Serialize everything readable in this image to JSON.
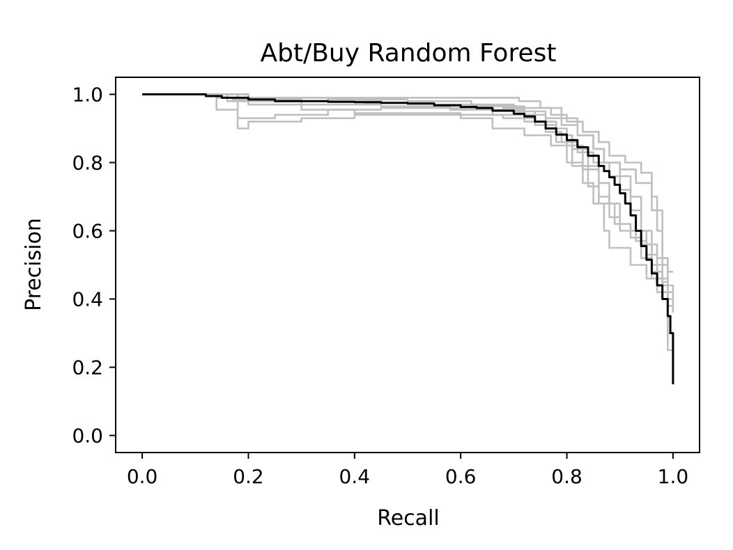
{
  "chart_data": {
    "type": "line",
    "title": "Abt/Buy Random Forest",
    "xlabel": "Recall",
    "ylabel": "Precision",
    "xlim": [
      -0.05,
      1.05
    ],
    "ylim": [
      -0.05,
      1.05
    ],
    "xticks": [
      0.0,
      0.2,
      0.4,
      0.6,
      0.8,
      1.0
    ],
    "yticks": [
      0.0,
      0.2,
      0.4,
      0.6,
      0.8,
      1.0
    ],
    "tick_labels_x": [
      "0.0",
      "0.2",
      "0.4",
      "0.6",
      "0.8",
      "1.0"
    ],
    "tick_labels_y": [
      "0.0",
      "0.2",
      "0.4",
      "0.6",
      "0.8",
      "1.0"
    ],
    "grid": false,
    "colors": {
      "fold": "#bfbfbf",
      "mean": "#000000"
    },
    "series": [
      {
        "role": "fold",
        "points": [
          [
            0,
            1.0
          ],
          [
            0.12,
            1.0
          ],
          [
            0.14,
            0.99
          ],
          [
            0.17,
            0.985
          ],
          [
            0.25,
            0.98
          ],
          [
            0.35,
            0.98
          ],
          [
            0.45,
            0.975
          ],
          [
            0.55,
            0.97
          ],
          [
            0.62,
            0.965
          ],
          [
            0.68,
            0.96
          ],
          [
            0.72,
            0.95
          ],
          [
            0.76,
            0.93
          ],
          [
            0.79,
            0.91
          ],
          [
            0.82,
            0.88
          ],
          [
            0.85,
            0.84
          ],
          [
            0.87,
            0.8
          ],
          [
            0.9,
            0.76
          ],
          [
            0.92,
            0.7
          ],
          [
            0.94,
            0.6
          ],
          [
            0.96,
            0.5
          ],
          [
            0.98,
            0.4
          ],
          [
            0.99,
            0.25
          ],
          [
            1.0,
            0.16
          ]
        ]
      },
      {
        "role": "fold",
        "points": [
          [
            0,
            1.0
          ],
          [
            0.13,
            1.0
          ],
          [
            0.14,
            0.955
          ],
          [
            0.18,
            0.955
          ],
          [
            0.18,
            0.93
          ],
          [
            0.25,
            0.94
          ],
          [
            0.35,
            0.955
          ],
          [
            0.45,
            0.96
          ],
          [
            0.55,
            0.96
          ],
          [
            0.65,
            0.955
          ],
          [
            0.72,
            0.94
          ],
          [
            0.76,
            0.9
          ],
          [
            0.8,
            0.85
          ],
          [
            0.83,
            0.78
          ],
          [
            0.86,
            0.7
          ],
          [
            0.88,
            0.64
          ],
          [
            0.9,
            0.6
          ],
          [
            0.93,
            0.57
          ],
          [
            0.95,
            0.53
          ],
          [
            0.97,
            0.46
          ],
          [
            0.99,
            0.42
          ],
          [
            1.0,
            0.38
          ]
        ]
      },
      {
        "role": "fold",
        "points": [
          [
            0,
            1.0
          ],
          [
            0.14,
            1.0
          ],
          [
            0.18,
            0.9
          ],
          [
            0.2,
            0.9
          ],
          [
            0.2,
            0.92
          ],
          [
            0.3,
            0.93
          ],
          [
            0.4,
            0.94
          ],
          [
            0.5,
            0.945
          ],
          [
            0.6,
            0.94
          ],
          [
            0.68,
            0.93
          ],
          [
            0.74,
            0.91
          ],
          [
            0.78,
            0.86
          ],
          [
            0.81,
            0.79
          ],
          [
            0.84,
            0.73
          ],
          [
            0.86,
            0.68
          ],
          [
            0.89,
            0.62
          ],
          [
            0.92,
            0.6
          ],
          [
            0.95,
            0.56
          ],
          [
            0.97,
            0.52
          ],
          [
            0.99,
            0.48
          ],
          [
            1.0,
            0.48
          ]
        ]
      },
      {
        "role": "fold",
        "points": [
          [
            0,
            1.0
          ],
          [
            0.13,
            1.0
          ],
          [
            0.2,
            0.99
          ],
          [
            0.3,
            0.99
          ],
          [
            0.45,
            0.99
          ],
          [
            0.6,
            0.99
          ],
          [
            0.7,
            0.99
          ],
          [
            0.71,
            0.98
          ],
          [
            0.75,
            0.96
          ],
          [
            0.79,
            0.93
          ],
          [
            0.82,
            0.88
          ],
          [
            0.85,
            0.84
          ],
          [
            0.87,
            0.8
          ],
          [
            0.9,
            0.78
          ],
          [
            0.93,
            0.74
          ],
          [
            0.96,
            0.66
          ],
          [
            0.98,
            0.5
          ],
          [
            0.99,
            0.3
          ],
          [
            1.0,
            0.15
          ]
        ]
      },
      {
        "role": "fold",
        "points": [
          [
            0,
            1.0
          ],
          [
            0.1,
            1.0
          ],
          [
            0.2,
            0.97
          ],
          [
            0.3,
            0.955
          ],
          [
            0.4,
            0.945
          ],
          [
            0.5,
            0.94
          ],
          [
            0.6,
            0.93
          ],
          [
            0.66,
            0.9
          ],
          [
            0.72,
            0.88
          ],
          [
            0.77,
            0.85
          ],
          [
            0.8,
            0.8
          ],
          [
            0.83,
            0.74
          ],
          [
            0.85,
            0.68
          ],
          [
            0.87,
            0.6
          ],
          [
            0.88,
            0.55
          ],
          [
            0.9,
            0.55
          ],
          [
            0.92,
            0.5
          ],
          [
            0.95,
            0.46
          ],
          [
            0.97,
            0.42
          ],
          [
            0.99,
            0.38
          ],
          [
            1.0,
            0.36
          ]
        ]
      },
      {
        "role": "fold",
        "points": [
          [
            0,
            1.0
          ],
          [
            0.12,
            1.0
          ],
          [
            0.16,
            0.98
          ],
          [
            0.3,
            0.98
          ],
          [
            0.42,
            0.975
          ],
          [
            0.55,
            0.97
          ],
          [
            0.65,
            0.965
          ],
          [
            0.72,
            0.96
          ],
          [
            0.77,
            0.94
          ],
          [
            0.8,
            0.92
          ],
          [
            0.83,
            0.89
          ],
          [
            0.86,
            0.86
          ],
          [
            0.88,
            0.82
          ],
          [
            0.91,
            0.8
          ],
          [
            0.94,
            0.77
          ],
          [
            0.96,
            0.7
          ],
          [
            0.97,
            0.6
          ],
          [
            0.98,
            0.45
          ],
          [
            0.99,
            0.3
          ],
          [
            1.0,
            0.15
          ]
        ]
      },
      {
        "role": "fold",
        "points": [
          [
            0,
            1.0
          ],
          [
            0.12,
            1.0
          ],
          [
            0.2,
            0.99
          ],
          [
            0.35,
            0.985
          ],
          [
            0.5,
            0.98
          ],
          [
            0.62,
            0.97
          ],
          [
            0.7,
            0.95
          ],
          [
            0.74,
            0.92
          ],
          [
            0.78,
            0.88
          ],
          [
            0.81,
            0.84
          ],
          [
            0.84,
            0.79
          ],
          [
            0.86,
            0.74
          ],
          [
            0.88,
            0.68
          ],
          [
            0.9,
            0.62
          ],
          [
            0.92,
            0.58
          ],
          [
            0.94,
            0.52
          ],
          [
            0.96,
            0.48
          ],
          [
            0.98,
            0.44
          ],
          [
            1.0,
            0.41
          ]
        ]
      },
      {
        "role": "fold",
        "points": [
          [
            0,
            1.0
          ],
          [
            0.12,
            1.0
          ],
          [
            0.18,
            0.985
          ],
          [
            0.3,
            0.97
          ],
          [
            0.45,
            0.965
          ],
          [
            0.58,
            0.955
          ],
          [
            0.66,
            0.94
          ],
          [
            0.72,
            0.92
          ],
          [
            0.76,
            0.89
          ],
          [
            0.79,
            0.86
          ],
          [
            0.82,
            0.83
          ],
          [
            0.85,
            0.8
          ],
          [
            0.88,
            0.76
          ],
          [
            0.9,
            0.72
          ],
          [
            0.92,
            0.66
          ],
          [
            0.94,
            0.56
          ],
          [
            0.96,
            0.46
          ],
          [
            0.98,
            0.4
          ],
          [
            1.0,
            0.4
          ]
        ]
      },
      {
        "role": "mean",
        "points": [
          [
            0,
            1.0
          ],
          [
            0.05,
            1.0
          ],
          [
            0.1,
            1.0
          ],
          [
            0.12,
            0.995
          ],
          [
            0.15,
            0.99
          ],
          [
            0.2,
            0.985
          ],
          [
            0.25,
            0.98
          ],
          [
            0.3,
            0.98
          ],
          [
            0.35,
            0.978
          ],
          [
            0.4,
            0.977
          ],
          [
            0.45,
            0.975
          ],
          [
            0.5,
            0.973
          ],
          [
            0.55,
            0.968
          ],
          [
            0.6,
            0.963
          ],
          [
            0.63,
            0.96
          ],
          [
            0.66,
            0.952
          ],
          [
            0.7,
            0.943
          ],
          [
            0.72,
            0.935
          ],
          [
            0.74,
            0.92
          ],
          [
            0.76,
            0.9
          ],
          [
            0.78,
            0.882
          ],
          [
            0.8,
            0.866
          ],
          [
            0.82,
            0.845
          ],
          [
            0.84,
            0.82
          ],
          [
            0.86,
            0.79
          ],
          [
            0.87,
            0.775
          ],
          [
            0.88,
            0.757
          ],
          [
            0.89,
            0.735
          ],
          [
            0.9,
            0.71
          ],
          [
            0.91,
            0.68
          ],
          [
            0.92,
            0.645
          ],
          [
            0.93,
            0.6
          ],
          [
            0.94,
            0.555
          ],
          [
            0.95,
            0.515
          ],
          [
            0.96,
            0.475
          ],
          [
            0.97,
            0.44
          ],
          [
            0.98,
            0.4
          ],
          [
            0.99,
            0.35
          ],
          [
            0.995,
            0.3
          ],
          [
            1.0,
            0.15
          ]
        ]
      }
    ]
  }
}
